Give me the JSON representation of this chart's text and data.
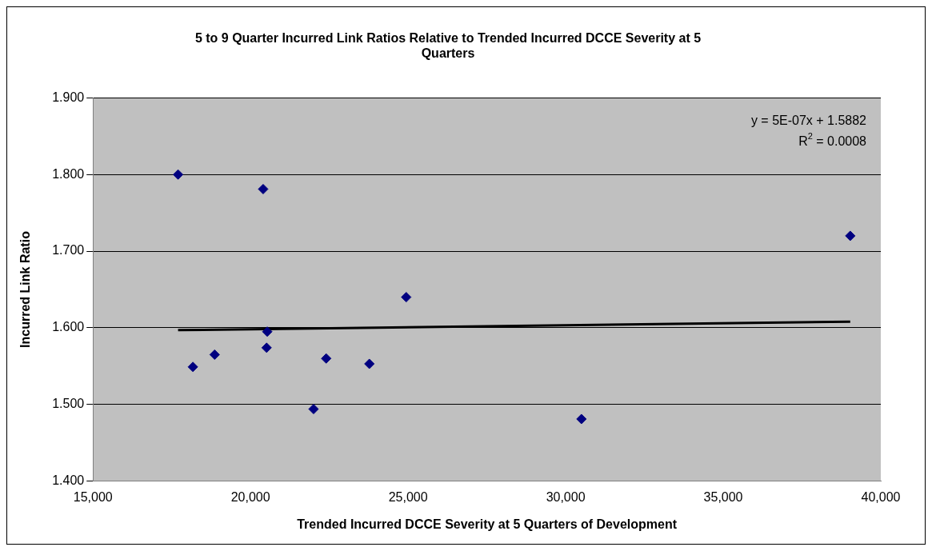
{
  "chart_data": {
    "type": "scatter",
    "title": "5 to 9 Quarter Incurred Link Ratios Relative to Trended Incurred DCCE Severity at 5 Quarters",
    "xlabel": "Trended Incurred DCCE Severity at 5 Quarters of Development",
    "ylabel": "Incurred Link Ratio",
    "xlim": [
      15000,
      40000
    ],
    "xticks": [
      {
        "value": 15000,
        "label": "15,000"
      },
      {
        "value": 20000,
        "label": "20,000"
      },
      {
        "value": 25000,
        "label": "25,000"
      },
      {
        "value": 30000,
        "label": "30,000"
      },
      {
        "value": 35000,
        "label": "35,000"
      },
      {
        "value": 40000,
        "label": "40,000"
      }
    ],
    "ylim": [
      1.4,
      1.9
    ],
    "yticks": [
      {
        "value": 1.4,
        "label": "1.400"
      },
      {
        "value": 1.5,
        "label": "1.500"
      },
      {
        "value": 1.6,
        "label": "1.600"
      },
      {
        "value": 1.7,
        "label": "1.700"
      },
      {
        "value": 1.8,
        "label": "1.800"
      },
      {
        "value": 1.9,
        "label": "1.900"
      }
    ],
    "grid": "y",
    "legend": false,
    "marker": "diamond",
    "series": [
      {
        "color": "#000080",
        "x": [
          17700,
          18170,
          18860,
          20400,
          20530,
          20510,
          22000,
          22400,
          23770,
          24940,
          30500,
          39030
        ],
        "values": [
          1.8,
          1.549,
          1.565,
          1.781,
          1.595,
          1.574,
          1.494,
          1.56,
          1.553,
          1.64,
          1.481,
          1.72
        ]
      },
      {
        "type": "line",
        "marker": "none",
        "color": "#000000",
        "x": [
          17700,
          39030
        ],
        "values": [
          1.597,
          1.608
        ]
      }
    ],
    "annotations": [
      "y = 5E-07x + 1.5882",
      "R$^{2}$ = 0.0008"
    ]
  }
}
